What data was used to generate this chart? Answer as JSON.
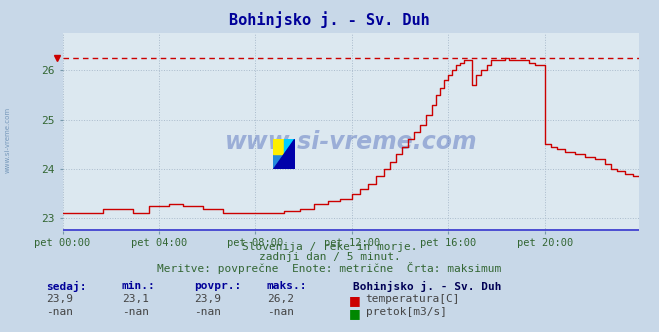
{
  "title": "Bohinjsko j. - Sv. Duh",
  "title_color": "#000099",
  "bg_color": "#c8d8e8",
  "plot_bg_color": "#dce8f0",
  "grid_color": "#aabbcc",
  "tick_label_color": "#336633",
  "footer_color": "#336633",
  "ylim": [
    22.75,
    26.75
  ],
  "yticks": [
    23,
    24,
    25,
    26
  ],
  "n_points": 288,
  "x_tick_positions": [
    0,
    48,
    96,
    144,
    192,
    240
  ],
  "x_tick_labels": [
    "pet 00:00",
    "pet 04:00",
    "pet 08:00",
    "pet 12:00",
    "pet 16:00",
    "pet 20:00"
  ],
  "max_line_y": 26.25,
  "temp_color": "#cc0000",
  "pretok_color": "#008800",
  "blue_line_color": "#3333cc",
  "watermark_text": "www.si-vreme.com",
  "footer_line1": "Slovenija / reke in morje.",
  "footer_line2": "zadnji dan / 5 minut.",
  "footer_line3": "Meritve: povprečne  Enote: metrične  Črta: maksimum",
  "legend_station": "Bohinjsko j. - Sv. Duh",
  "legend_temp": "temperatura[C]",
  "legend_pretok": "pretok[m3/s]",
  "stat_headers": [
    "sedaj:",
    "min.:",
    "povpr.:",
    "maks.:"
  ],
  "stat_temp": [
    "23,9",
    "23,1",
    "23,9",
    "26,2"
  ],
  "stat_pretok": [
    "-nan",
    "-nan",
    "-nan",
    "-nan"
  ],
  "left_label": "www.si-vreme.com"
}
